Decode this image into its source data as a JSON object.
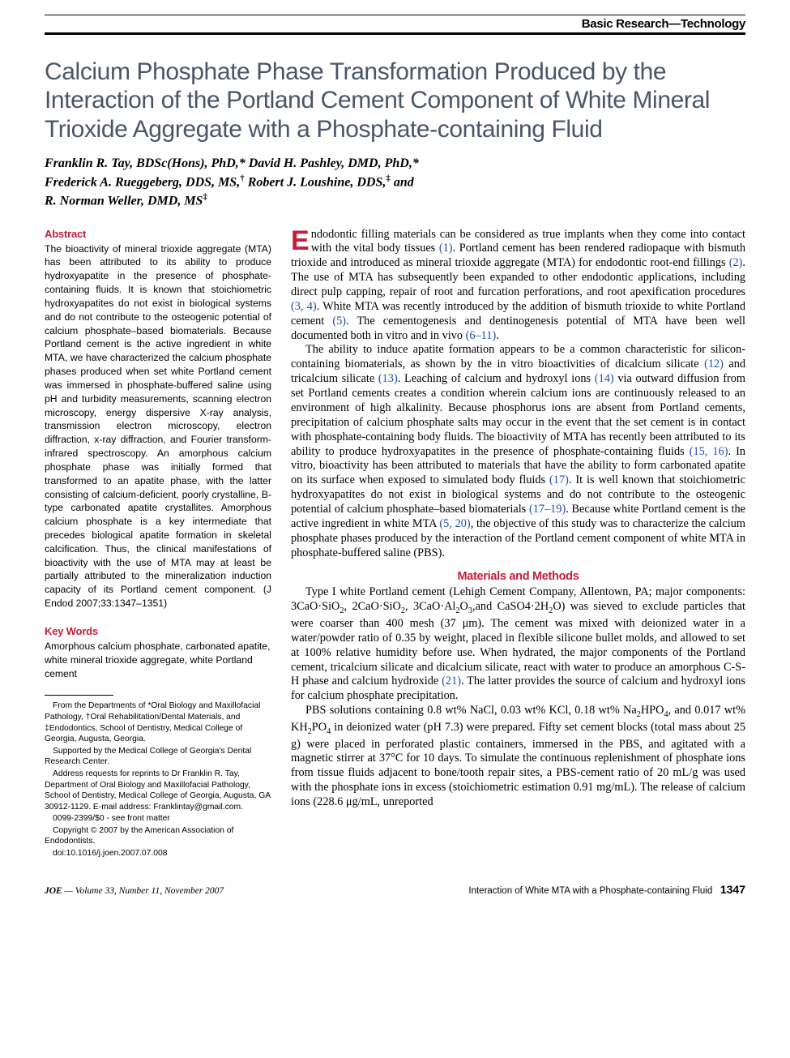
{
  "header": {
    "section_label": "Basic Research—Technology"
  },
  "title": "Calcium Phosphate Phase Transformation Produced by the Interaction of the Portland Cement Component of White Mineral Trioxide Aggregate with a Phosphate-containing Fluid",
  "authors_html": "Franklin R. Tay, BDSc(Hons), PhD,* David H. Pashley, DMD, PhD,*<br>Frederick A. Rueggeberg, DDS, MS,<sup>†</sup> Robert J. Loushine, DDS,<sup>‡</sup> and<br>R. Norman Weller, DMD, MS<sup>‡</sup>",
  "left": {
    "abstract_heading": "Abstract",
    "abstract_text": "The bioactivity of mineral trioxide aggregate (MTA) has been attributed to its ability to produce hydroxyapatite in the presence of phosphate-containing fluids. It is known that stoichiometric hydroxyapatites do not exist in biological systems and do not contribute to the osteogenic potential of calcium phosphate–based biomaterials. Because Portland cement is the active ingredient in white MTA, we have characterized the calcium phosphate phases produced when set white Portland cement was immersed in phosphate-buffered saline using pH and turbidity measurements, scanning electron microscopy, energy dispersive X-ray analysis, transmission electron microscopy, electron diffraction, x-ray diffraction, and Fourier transform-infrared spectroscopy. An amorphous calcium phosphate phase was initially formed that transformed to an apatite phase, with the latter consisting of calcium-deficient, poorly crystalline, B-type carbonated apatite crystallites. Amorphous calcium phosphate is a key intermediate that precedes biological apatite formation in skeletal calcification. Thus, the clinical manifestations of bioactivity with the use of MTA may at least be partially attributed to the mineralization induction capacity of its Portland cement component. (J Endod 2007;33:1347–1351)",
    "keywords_heading": "Key Words",
    "keywords_text": "Amorphous calcium phosphate, carbonated apatite, white mineral trioxide aggregate, white Portland cement",
    "affil": {
      "p1": "From the Departments of *Oral Biology and Maxillofacial Pathology, †Oral Rehabilitation/Dental Materials, and ‡Endodontics, School of Dentistry, Medical College of Georgia, Augusta, Georgia.",
      "p2": "Supported by the Medical College of Georgia's Dental Research Center.",
      "p3": "Address requests for reprints to Dr Franklin R. Tay, Department of Oral Biology and Maxillofacial Pathology, School of Dentistry, Medical College of Georgia, Augusta, GA 30912-1129. E-mail address: Franklintay@gmail.com.",
      "p4": "0099-2399/$0 - see front matter",
      "p5": "Copyright © 2007 by the American Association of Endodontists.",
      "p6": "doi:10.1016/j.joen.2007.07.008"
    }
  },
  "body": {
    "p1_dropcap": "E",
    "p1_rest_a": "ndodontic filling materials can be considered as true implants when they come into contact with the vital body tissues ",
    "p1_ref1": "(1)",
    "p1_rest_b": ". Portland cement has been rendered radiopaque with bismuth trioxide and introduced as mineral trioxide aggregate (MTA) for endodontic root-end fillings ",
    "p1_ref2": "(2)",
    "p1_rest_c": ". The use of MTA has subsequently been expanded to other endodontic applications, including direct pulp capping, repair of root and furcation perforations, and root apexification procedures ",
    "p1_ref3": "(3, 4)",
    "p1_rest_d": ". White MTA was recently introduced by the addition of bismuth trioxide to white Portland cement ",
    "p1_ref4": "(5)",
    "p1_rest_e": ". The cementogenesis and dentinogenesis potential of MTA have been well documented both in vitro and in vivo ",
    "p1_ref5": "(6–11)",
    "p1_rest_f": ".",
    "p2_a": "The ability to induce apatite formation appears to be a common characteristic for silicon-containing biomaterials, as shown by the in vitro bioactivities of dicalcium silicate ",
    "p2_ref1": "(12)",
    "p2_b": " and tricalcium silicate ",
    "p2_ref2": "(13)",
    "p2_c": ". Leaching of calcium and hydroxyl ions ",
    "p2_ref3": "(14)",
    "p2_d": " via outward diffusion from set Portland cements creates a condition wherein calcium ions are continuously released to an environment of high alkalinity. Because phosphorus ions are absent from Portland cements, precipitation of calcium phosphate salts may occur in the event that the set cement is in contact with phosphate-containing body fluids. The bioactivity of MTA has recently been attributed to its ability to produce hydroxyapatites in the presence of phosphate-containing fluids ",
    "p2_ref4": "(15, 16)",
    "p2_e": ". In vitro, bioactivity has been attributed to materials that have the ability to form carbonated apatite on its surface when exposed to simulated body fluids ",
    "p2_ref5": "(17)",
    "p2_f": ". It is well known that stoichiometric hydroxyapatites do not exist in biological systems and do not contribute to the osteogenic potential of calcium phosphate–based biomaterials ",
    "p2_ref6": "(17–19)",
    "p2_g": ". Because white Portland cement is the active ingredient in white MTA ",
    "p2_ref7": "(5, 20)",
    "p2_h": ", the objective of this study was to characterize the calcium phosphate phases produced by the interaction of the Portland cement component of white MTA in phosphate-buffered saline (PBS).",
    "methods_heading": "Materials and Methods",
    "p3_a": "Type I white Portland cement (Lehigh Cement Company, Allentown, PA; major components: 3CaO·SiO",
    "p3_b": ", 2CaO·SiO",
    "p3_c": ", 3CaO·Al",
    "p3_d": "O",
    "p3_e": ",and CaSO4·2H",
    "p3_f": "O) was sieved to exclude particles that were coarser than 400 mesh (37 μm). The cement was mixed with deionized water in a water/powder ratio of 0.35 by weight, placed in flexible silicone bullet molds, and allowed to set at 100% relative humidity before use. When hydrated, the major components of the Portland cement, tricalcium silicate and dicalcium silicate, react with water to produce an amorphous C-S-H phase and calcium hydroxide ",
    "p3_ref1": "(21)",
    "p3_g": ". The latter provides the source of calcium and hydroxyl ions for calcium phosphate precipitation.",
    "p4_a": "PBS solutions containing 0.8 wt% NaCl, 0.03 wt% KCl, 0.18 wt% Na",
    "p4_b": "HPO",
    "p4_c": ", and 0.017 wt% KH",
    "p4_d": "PO",
    "p4_e": " in deionized water (pH 7.3) were prepared. Fifty set cement blocks (total mass about 25 g) were placed in perforated plastic containers, immersed in the PBS, and agitated with a magnetic stirrer at 37°C for 10 days. To simulate the continuous replenishment of phosphate ions from tissue fluids adjacent to bone/tooth repair sites, a PBS-cement ratio of 20 mL/g was used with the phosphate ions in excess (stoichiometric estimation 0.91 mg/mL). The release of calcium ions (228.6 μg/mL, unreported"
  },
  "footer": {
    "journal_abbrev": "JOE",
    "issue": " — Volume 33, Number 11, November 2007",
    "running_title": "Interaction of White MTA with a Phosphate-containing Fluid",
    "page": "1347"
  },
  "colors": {
    "accent": "#c41e3a",
    "title_gray": "#4a5568",
    "link": "#1a4db3",
    "text": "#000000",
    "background": "#ffffff"
  }
}
